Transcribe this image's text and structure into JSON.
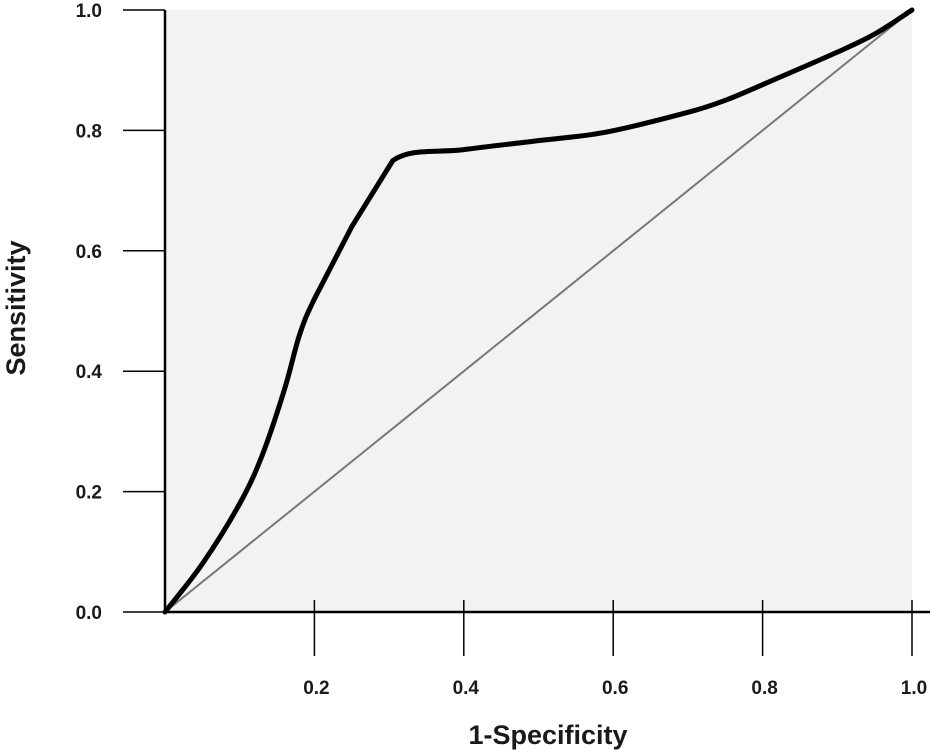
{
  "chart_data": {
    "type": "line",
    "xlabel": "1-Specificity",
    "ylabel": "Sensitivity",
    "xlim": [
      0,
      1
    ],
    "ylim": [
      0,
      1
    ],
    "x_ticks": [
      "0.2",
      "0.4",
      "0.6",
      "0.8",
      "1.0"
    ],
    "y_ticks": [
      "0.0",
      "0.2",
      "0.4",
      "0.6",
      "0.8",
      "1.0"
    ],
    "grid": false,
    "legend": "none",
    "colors": {
      "plot_background": "#f2f2f2",
      "roc_line": "#000000",
      "reference_line": "#777777",
      "axis": "#000000"
    },
    "series": [
      {
        "x": [
          0.0,
          0.05,
          0.1,
          0.13,
          0.16,
          0.18,
          0.2,
          0.25,
          0.305,
          0.4,
          0.5,
          0.59,
          0.7,
          0.75,
          0.8,
          0.9,
          0.95,
          1.0
        ],
        "y": [
          0.0,
          0.08,
          0.18,
          0.26,
          0.37,
          0.46,
          0.52,
          0.64,
          0.75,
          0.768,
          0.783,
          0.797,
          0.83,
          0.85,
          0.876,
          0.93,
          0.96,
          1.0
        ]
      },
      {
        "x": [
          0.0,
          1.0
        ],
        "y": [
          0.0,
          1.0
        ]
      }
    ]
  }
}
